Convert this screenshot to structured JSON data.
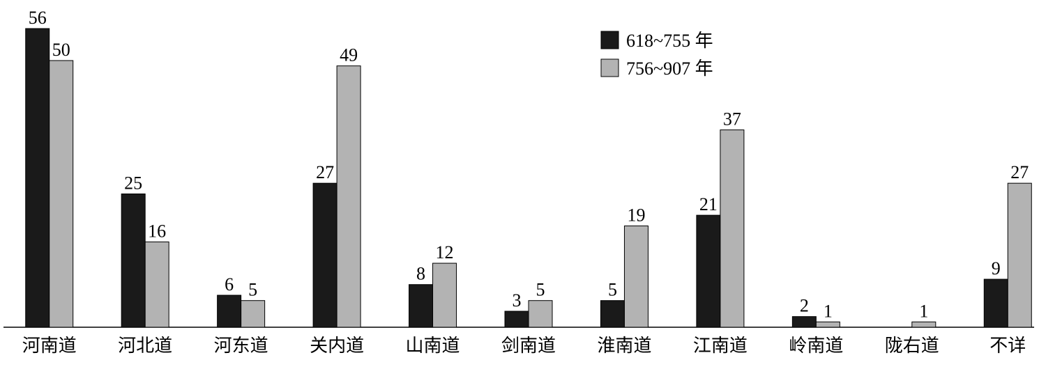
{
  "chart_data": {
    "type": "bar",
    "categories": [
      "河南道",
      "河北道",
      "河东道",
      "关内道",
      "山南道",
      "剑南道",
      "淮南道",
      "江南道",
      "岭南道",
      "陇右道",
      "不详"
    ],
    "series": [
      {
        "name": "618~755 年",
        "color": "#1a1a1a",
        "values": [
          56,
          25,
          6,
          27,
          8,
          3,
          5,
          21,
          2,
          null,
          9
        ]
      },
      {
        "name": "756~907 年",
        "color": "#b3b3b3",
        "values": [
          50,
          16,
          5,
          49,
          12,
          5,
          19,
          37,
          1,
          1,
          27
        ]
      }
    ],
    "ylim": [
      0,
      56
    ],
    "legend": "top-right"
  }
}
